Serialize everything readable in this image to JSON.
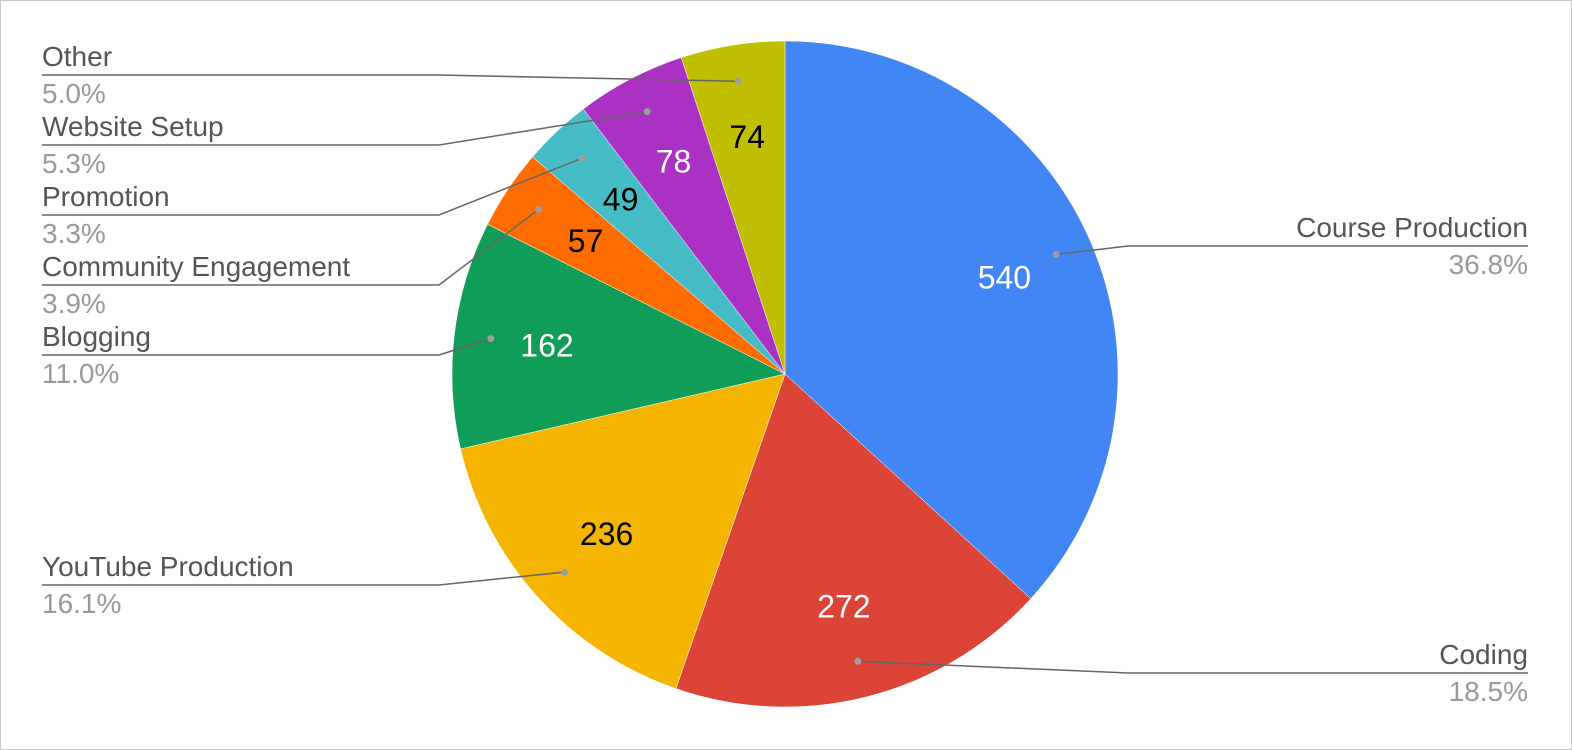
{
  "chart_data": {
    "type": "pie",
    "title": "",
    "legend": "labeled",
    "start_angle_deg": 0,
    "direction": "clockwise",
    "slices": [
      {
        "label": "Course Production",
        "value": 540,
        "percent": "36.8%",
        "color": "#4285F4",
        "value_color": "#ffffff",
        "side": "right"
      },
      {
        "label": "Coding",
        "value": 272,
        "percent": "18.5%",
        "color": "#DB4437",
        "value_color": "#ffffff",
        "side": "right"
      },
      {
        "label": "YouTube Production",
        "value": 236,
        "percent": "16.1%",
        "color": "#F4B400",
        "value_color": "#000000",
        "side": "left"
      },
      {
        "label": "Blogging",
        "value": 162,
        "percent": "11.0%",
        "color": "#0F9D58",
        "value_color": "#ffffff",
        "side": "left"
      },
      {
        "label": "Community Engagement",
        "value": 57,
        "percent": "3.9%",
        "color": "#FF6D01",
        "value_color": "#000000",
        "side": "left"
      },
      {
        "label": "Promotion",
        "value": 49,
        "percent": "3.3%",
        "color": "#46BDC6",
        "value_color": "#000000",
        "side": "left"
      },
      {
        "label": "Website Setup",
        "value": 78,
        "percent": "5.3%",
        "color": "#AB30C4",
        "value_color": "#ffffff",
        "side": "left"
      },
      {
        "label": "Other",
        "value": 74,
        "percent": "5.0%",
        "color": "#BFBF00",
        "value_color": "#000000",
        "side": "left"
      }
    ]
  }
}
